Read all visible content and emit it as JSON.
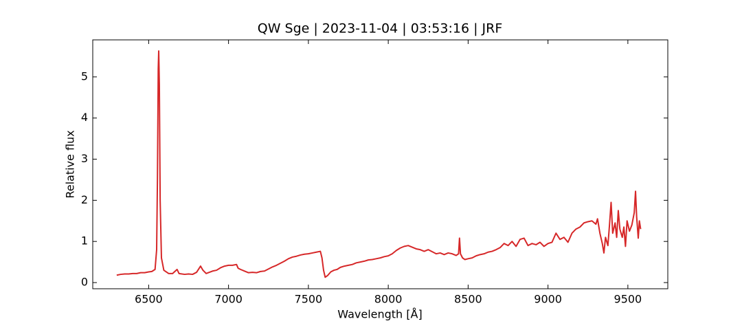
{
  "chart_data": {
    "type": "line",
    "title": "QW Sge | 2023-11-04 | 03:53:16 | JRF",
    "x_label": "Wavelength [Å]",
    "y_label": "Relative flux",
    "color": "#d62728",
    "xlim": [
      6150,
      9750
    ],
    "ylim": [
      -0.15,
      5.9
    ],
    "xticks": [
      6500,
      7000,
      7500,
      8000,
      8500,
      9000,
      9500
    ],
    "yticks": [
      0,
      1,
      2,
      3,
      4,
      5
    ],
    "x": [
      6300,
      6325,
      6350,
      6375,
      6400,
      6425,
      6450,
      6475,
      6500,
      6520,
      6540,
      6550,
      6555,
      6560,
      6563,
      6567,
      6572,
      6580,
      6595,
      6625,
      6650,
      6678,
      6690,
      6725,
      6750,
      6775,
      6800,
      6825,
      6840,
      6860,
      6900,
      6925,
      6950,
      6975,
      7000,
      7025,
      7050,
      7060,
      7075,
      7100,
      7125,
      7150,
      7175,
      7200,
      7225,
      7250,
      7275,
      7300,
      7325,
      7350,
      7375,
      7400,
      7425,
      7450,
      7475,
      7500,
      7525,
      7550,
      7575,
      7585,
      7595,
      7605,
      7620,
      7640,
      7660,
      7680,
      7700,
      7725,
      7750,
      7775,
      7800,
      7825,
      7850,
      7875,
      7900,
      7925,
      7950,
      7975,
      8000,
      8025,
      8050,
      8075,
      8100,
      8125,
      8150,
      8175,
      8200,
      8225,
      8250,
      8275,
      8300,
      8325,
      8350,
      8375,
      8400,
      8425,
      8440,
      8446,
      8452,
      8465,
      8480,
      8500,
      8525,
      8550,
      8575,
      8600,
      8625,
      8650,
      8675,
      8700,
      8725,
      8750,
      8775,
      8800,
      8825,
      8850,
      8875,
      8900,
      8925,
      8950,
      8975,
      9000,
      9025,
      9050,
      9075,
      9100,
      9125,
      9150,
      9175,
      9200,
      9225,
      9250,
      9275,
      9300,
      9310,
      9325,
      9340,
      9350,
      9360,
      9375,
      9385,
      9395,
      9405,
      9420,
      9430,
      9440,
      9450,
      9465,
      9475,
      9485,
      9495,
      9510,
      9525,
      9540,
      9548,
      9555,
      9565,
      9572,
      9580
    ],
    "values": [
      0.18,
      0.2,
      0.21,
      0.21,
      0.22,
      0.22,
      0.24,
      0.24,
      0.26,
      0.27,
      0.32,
      0.8,
      2.5,
      5.2,
      5.63,
      4.8,
      2.0,
      0.6,
      0.3,
      0.22,
      0.22,
      0.32,
      0.22,
      0.2,
      0.21,
      0.2,
      0.25,
      0.4,
      0.3,
      0.22,
      0.28,
      0.3,
      0.36,
      0.4,
      0.42,
      0.42,
      0.44,
      0.35,
      0.32,
      0.28,
      0.24,
      0.25,
      0.24,
      0.27,
      0.28,
      0.33,
      0.38,
      0.42,
      0.47,
      0.52,
      0.58,
      0.62,
      0.64,
      0.67,
      0.69,
      0.7,
      0.72,
      0.74,
      0.76,
      0.6,
      0.3,
      0.13,
      0.17,
      0.26,
      0.3,
      0.32,
      0.37,
      0.4,
      0.42,
      0.44,
      0.48,
      0.5,
      0.52,
      0.55,
      0.56,
      0.58,
      0.6,
      0.63,
      0.65,
      0.7,
      0.78,
      0.84,
      0.88,
      0.9,
      0.86,
      0.82,
      0.8,
      0.76,
      0.8,
      0.75,
      0.7,
      0.72,
      0.68,
      0.72,
      0.7,
      0.66,
      0.7,
      1.08,
      0.7,
      0.6,
      0.56,
      0.58,
      0.6,
      0.65,
      0.68,
      0.7,
      0.74,
      0.76,
      0.8,
      0.85,
      0.95,
      0.9,
      1.0,
      0.88,
      1.05,
      1.08,
      0.9,
      0.95,
      0.92,
      0.98,
      0.88,
      0.95,
      0.98,
      1.2,
      1.05,
      1.1,
      0.98,
      1.2,
      1.3,
      1.35,
      1.45,
      1.48,
      1.5,
      1.42,
      1.55,
      1.2,
      0.95,
      0.72,
      1.1,
      0.9,
      1.4,
      1.95,
      1.2,
      1.45,
      1.1,
      1.75,
      1.3,
      1.1,
      1.35,
      0.88,
      1.5,
      1.25,
      1.4,
      1.7,
      2.22,
      1.6,
      1.08,
      1.5,
      1.3
    ]
  }
}
